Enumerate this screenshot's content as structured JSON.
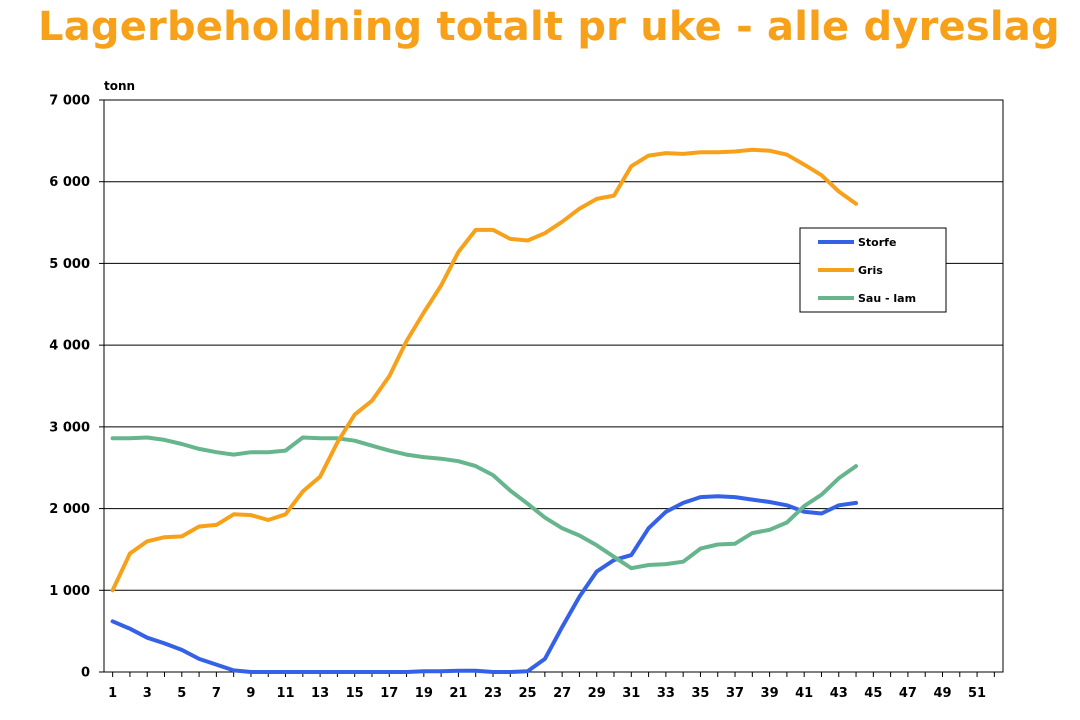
{
  "page": {
    "title": "Lagerbeholdning totalt pr uke - alle dyreslag",
    "title_color": "#f7a11a"
  },
  "chart_data": {
    "type": "line",
    "ylabel": "tonn",
    "xlabel": "",
    "ylim": [
      0,
      7000
    ],
    "yticks": [
      0,
      1000,
      2000,
      3000,
      4000,
      5000,
      6000,
      7000
    ],
    "ytick_labels": [
      "0",
      "1 000",
      "2 000",
      "3 000",
      "4 000",
      "5 000",
      "6 000",
      "7 000"
    ],
    "xlim": [
      1,
      52
    ],
    "xtick_labels": [
      "1",
      "3",
      "5",
      "7",
      "9",
      "11",
      "13",
      "15",
      "17",
      "19",
      "21",
      "23",
      "25",
      "27",
      "29",
      "31",
      "33",
      "35",
      "37",
      "39",
      "41",
      "43",
      "45",
      "47",
      "49",
      "51"
    ],
    "xtick_values": [
      1,
      3,
      5,
      7,
      9,
      11,
      13,
      15,
      17,
      19,
      21,
      23,
      25,
      27,
      29,
      31,
      33,
      35,
      37,
      39,
      41,
      43,
      45,
      47,
      49,
      51
    ],
    "grid": "horizontal",
    "legend_position": "right",
    "x": [
      1,
      2,
      3,
      4,
      5,
      6,
      7,
      8,
      9,
      10,
      11,
      12,
      13,
      14,
      15,
      16,
      17,
      18,
      19,
      20,
      21,
      22,
      23,
      24,
      25,
      26,
      27,
      28,
      29,
      30,
      31,
      32,
      33,
      34,
      35,
      36,
      37,
      38,
      39,
      40,
      41,
      42,
      43,
      44
    ],
    "series": [
      {
        "name": "Storfe",
        "color": "#3561e6",
        "values": [
          620,
          530,
          420,
          350,
          270,
          160,
          90,
          20,
          0,
          0,
          0,
          0,
          0,
          0,
          0,
          0,
          0,
          0,
          10,
          10,
          15,
          15,
          0,
          0,
          10,
          160,
          550,
          920,
          1230,
          1370,
          1430,
          1760,
          1960,
          2070,
          2140,
          2150,
          2140,
          2110,
          2080,
          2040,
          1960,
          1940,
          2040,
          2070
        ]
      },
      {
        "name": "Gris",
        "color": "#f7a11a",
        "values": [
          1000,
          1450,
          1600,
          1650,
          1660,
          1780,
          1800,
          1930,
          1920,
          1860,
          1930,
          2210,
          2390,
          2810,
          3150,
          3320,
          3620,
          4050,
          4400,
          4730,
          5140,
          5410,
          5410,
          5300,
          5280,
          5370,
          5510,
          5670,
          5790,
          5830,
          6190,
          6320,
          6350,
          6340,
          6360,
          6360,
          6370,
          6390,
          6380,
          6330,
          6210,
          6080,
          5880,
          5730
        ]
      },
      {
        "name": "Sau - lam",
        "color": "#66b58c",
        "values": [
          2860,
          2860,
          2870,
          2840,
          2790,
          2730,
          2690,
          2660,
          2690,
          2690,
          2710,
          2870,
          2860,
          2860,
          2830,
          2770,
          2710,
          2660,
          2630,
          2610,
          2580,
          2520,
          2410,
          2220,
          2060,
          1890,
          1760,
          1670,
          1550,
          1410,
          1270,
          1310,
          1320,
          1350,
          1510,
          1560,
          1570,
          1700,
          1740,
          1830,
          2030,
          2170,
          2370,
          2520
        ]
      }
    ]
  }
}
